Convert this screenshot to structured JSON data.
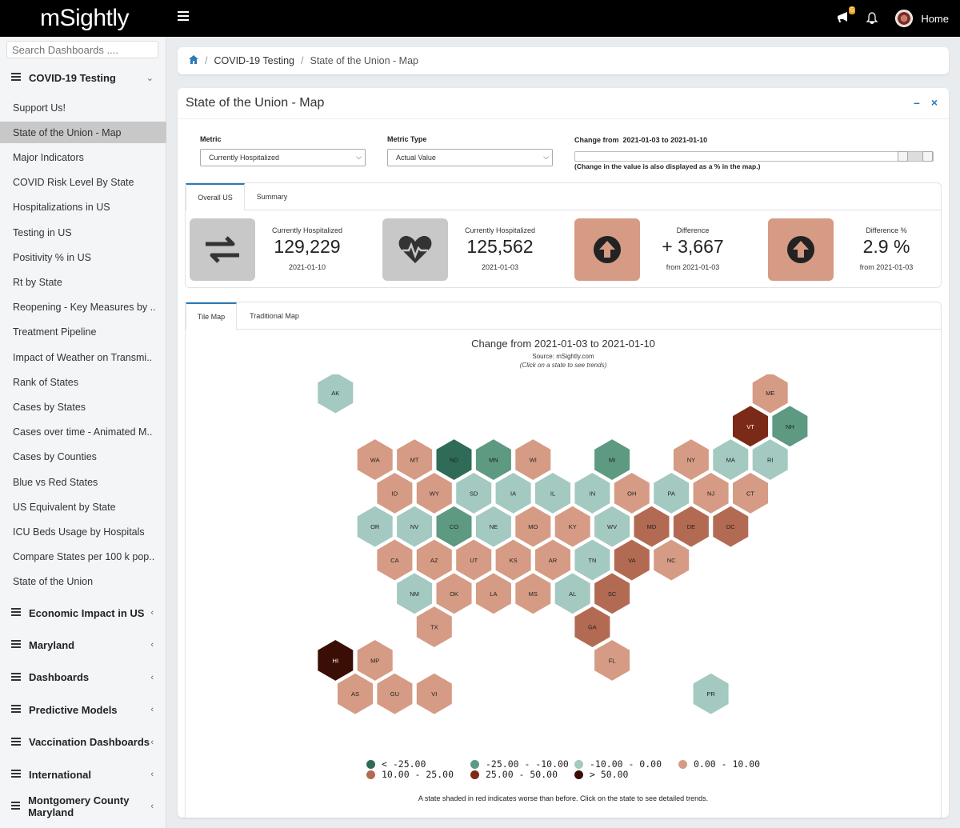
{
  "app": {
    "logo": "mSightly",
    "home_label": "Home",
    "notification_count": "5"
  },
  "sidebar": {
    "search_placeholder": "Search Dashboards ....",
    "active_section": "COVID-19 Testing",
    "items": [
      "Support Us!",
      "State of the Union - Map",
      "Major Indicators",
      "COVID Risk Level By State",
      "Hospitalizations in US",
      "Testing in US",
      "Positivity % in US",
      "Rt by State",
      "Reopening - Key Measures by ..",
      "Treatment Pipeline",
      "Impact of Weather on Transmi..",
      "Rank of States",
      "Cases by States",
      "Cases over time - Animated M..",
      "Cases by Counties",
      "Blue vs Red States",
      "US Equivalent by State",
      "ICU Beds Usage by Hospitals",
      "Compare States per 100 k pop..",
      "State of the Union"
    ],
    "sections": [
      "Economic Impact in US",
      "Maryland",
      "Dashboards",
      "Predictive Models",
      "Vaccination Dashboards",
      "International",
      "Montgomery County Maryland"
    ]
  },
  "breadcrumb": {
    "section": "COVID-19 Testing",
    "page": "State of the Union - Map"
  },
  "panel": {
    "title": "State of the Union - Map",
    "metric_label": "Metric",
    "metric_value": "Currently Hospitalized",
    "metric_type_label": "Metric Type",
    "metric_type_value": "Actual Value",
    "change_label": "Change from",
    "change_range": "2021-01-03 to 2021-01-10",
    "change_note": "(Change in the value is also displayed as a % in the map.)"
  },
  "kpi_tabs": [
    "Overall US",
    "Summary"
  ],
  "kpis": [
    {
      "label": "Currently Hospitalized",
      "value": "129,229",
      "sub": "2021-01-10"
    },
    {
      "label": "Currently Hospitalized",
      "value": "125,562",
      "sub": "2021-01-03"
    },
    {
      "label": "Difference",
      "value": "+ 3,667",
      "sub": "from 2021-01-03"
    },
    {
      "label": "Difference %",
      "value": "2.9 %",
      "sub": "from 2021-01-03"
    }
  ],
  "map_tabs": [
    "Tile Map",
    "Traditional Map"
  ],
  "map": {
    "title": "Change from 2021-01-03 to 2021-01-10",
    "source_prefix": "Source: ",
    "source_name": "mSightly.com",
    "instruction": "(Click on a state to see trends)",
    "footnote": "A state shaded in red indicates worse than before. Click on the state to see detailed trends."
  },
  "legend": [
    {
      "label": "< -25.00",
      "color": "#2f6b57"
    },
    {
      "label": "-25.00 - -10.00",
      "color": "#5e9982"
    },
    {
      "label": "-10.00 - 0.00",
      "color": "#a3c9c0"
    },
    {
      "label": "0.00 - 10.00",
      "color": "#d59b84"
    },
    {
      "label": "10.00 - 25.00",
      "color": "#b36a53"
    },
    {
      "label": "25.00 - 50.00",
      "color": "#7a2a16"
    },
    {
      "label": "> 50.00",
      "color": "#3a0e04"
    }
  ],
  "states": [
    {
      "code": "AK",
      "bin": 2
    },
    {
      "code": "ME",
      "bin": 3
    },
    {
      "code": "VT",
      "bin": 5
    },
    {
      "code": "NH",
      "bin": 1
    },
    {
      "code": "WA",
      "bin": 3
    },
    {
      "code": "MT",
      "bin": 3
    },
    {
      "code": "ND",
      "bin": 0
    },
    {
      "code": "MN",
      "bin": 1
    },
    {
      "code": "WI",
      "bin": 3
    },
    {
      "code": "MI",
      "bin": 1
    },
    {
      "code": "NY",
      "bin": 3
    },
    {
      "code": "MA",
      "bin": 2
    },
    {
      "code": "RI",
      "bin": 2
    },
    {
      "code": "ID",
      "bin": 3
    },
    {
      "code": "WY",
      "bin": 3
    },
    {
      "code": "SD",
      "bin": 2
    },
    {
      "code": "IA",
      "bin": 2
    },
    {
      "code": "IL",
      "bin": 2
    },
    {
      "code": "IN",
      "bin": 2
    },
    {
      "code": "OH",
      "bin": 3
    },
    {
      "code": "PA",
      "bin": 2
    },
    {
      "code": "NJ",
      "bin": 3
    },
    {
      "code": "CT",
      "bin": 3
    },
    {
      "code": "OR",
      "bin": 2
    },
    {
      "code": "NV",
      "bin": 2
    },
    {
      "code": "CO",
      "bin": 1
    },
    {
      "code": "NE",
      "bin": 2
    },
    {
      "code": "MO",
      "bin": 3
    },
    {
      "code": "KY",
      "bin": 3
    },
    {
      "code": "WV",
      "bin": 2
    },
    {
      "code": "MD",
      "bin": 4
    },
    {
      "code": "DE",
      "bin": 4
    },
    {
      "code": "DC",
      "bin": 4
    },
    {
      "code": "CA",
      "bin": 3
    },
    {
      "code": "AZ",
      "bin": 3
    },
    {
      "code": "UT",
      "bin": 3
    },
    {
      "code": "KS",
      "bin": 3
    },
    {
      "code": "AR",
      "bin": 3
    },
    {
      "code": "TN",
      "bin": 2
    },
    {
      "code": "VA",
      "bin": 4
    },
    {
      "code": "NC",
      "bin": 3
    },
    {
      "code": "NM",
      "bin": 2
    },
    {
      "code": "OK",
      "bin": 3
    },
    {
      "code": "LA",
      "bin": 3
    },
    {
      "code": "MS",
      "bin": 3
    },
    {
      "code": "AL",
      "bin": 2
    },
    {
      "code": "SC",
      "bin": 4
    },
    {
      "code": "TX",
      "bin": 3
    },
    {
      "code": "GA",
      "bin": 4
    },
    {
      "code": "HI",
      "bin": 6
    },
    {
      "code": "MP",
      "bin": 3
    },
    {
      "code": "FL",
      "bin": 3
    },
    {
      "code": "AS",
      "bin": 3
    },
    {
      "code": "GU",
      "bin": 3
    },
    {
      "code": "VI",
      "bin": 3
    },
    {
      "code": "PR",
      "bin": 2
    }
  ]
}
